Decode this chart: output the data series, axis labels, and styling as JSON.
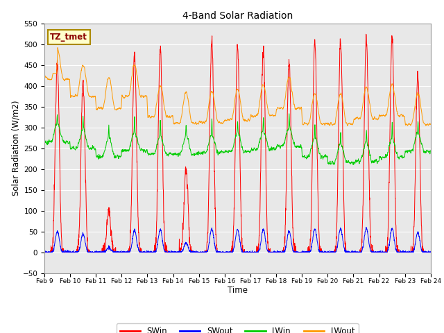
{
  "title": "4-Band Solar Radiation",
  "xlabel": "Time",
  "ylabel": "Solar Radiation (W/m2)",
  "ylim": [
    -50,
    550
  ],
  "yticks": [
    -50,
    0,
    50,
    100,
    150,
    200,
    250,
    300,
    350,
    400,
    450,
    500,
    550
  ],
  "annotation_text": "TZ_tmet",
  "colors": {
    "SWin": "#ff0000",
    "SWout": "#0000ff",
    "LWin": "#00cc00",
    "LWout": "#ff9900"
  },
  "plot_bg": "#e8e8e8",
  "fig_bg": "#ffffff",
  "n_days": 15,
  "start_day": 9,
  "peak_sw": [
    460,
    410,
    100,
    480,
    490,
    200,
    510,
    495,
    490,
    460,
    505,
    510,
    520,
    520,
    425
  ],
  "base_lwin": [
    265,
    250,
    230,
    245,
    235,
    235,
    238,
    242,
    248,
    255,
    230,
    215,
    218,
    228,
    242
  ],
  "base_lwout": [
    415,
    375,
    345,
    375,
    325,
    310,
    312,
    318,
    328,
    345,
    308,
    308,
    322,
    328,
    308
  ]
}
